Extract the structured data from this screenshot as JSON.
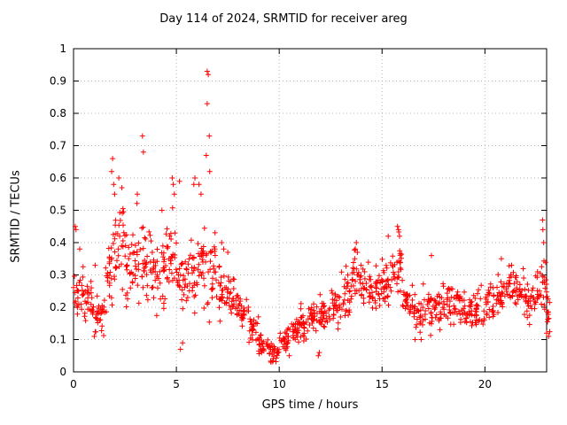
{
  "chart_data": {
    "type": "scatter",
    "title": "Day 114 of 2024, SRMTID for receiver areg",
    "xlabel": "GPS time / hours",
    "ylabel": "SRMTID / TECUs",
    "xlim": [
      0,
      23
    ],
    "ylim": [
      0,
      1
    ],
    "xticks": [
      0,
      5,
      10,
      15,
      20
    ],
    "xtick_labels": [
      "0",
      "5",
      "10",
      "15",
      "20"
    ],
    "yticks": [
      0,
      0.1,
      0.2,
      0.3,
      0.4,
      0.5,
      0.6,
      0.7,
      0.8,
      0.9,
      1
    ],
    "ytick_labels": [
      "0",
      "0.1",
      "0.2",
      "0.3",
      "0.4",
      "0.5",
      "0.6",
      "0.7",
      "0.8",
      "0.9",
      "1"
    ],
    "grid": true,
    "legend": "none",
    "marker": "+",
    "marker_color": "#ff0000",
    "grid_color": "#b4b4b4",
    "frame_color": "#000000",
    "bands_format": [
      "x_start",
      "x_end",
      "y_center",
      "y_spread",
      "n_points"
    ],
    "bands": [
      [
        0.0,
        0.5,
        0.24,
        0.08,
        26
      ],
      [
        0.5,
        1.0,
        0.2,
        0.06,
        26
      ],
      [
        1.0,
        1.5,
        0.16,
        0.07,
        26
      ],
      [
        1.5,
        2.0,
        0.3,
        0.14,
        28
      ],
      [
        2.0,
        2.5,
        0.4,
        0.13,
        28
      ],
      [
        2.5,
        3.0,
        0.3,
        0.12,
        26
      ],
      [
        3.0,
        3.5,
        0.36,
        0.12,
        28
      ],
      [
        3.5,
        4.0,
        0.32,
        0.1,
        26
      ],
      [
        4.0,
        4.5,
        0.3,
        0.1,
        26
      ],
      [
        4.5,
        5.0,
        0.34,
        0.12,
        28
      ],
      [
        5.0,
        5.5,
        0.27,
        0.09,
        26
      ],
      [
        5.5,
        6.0,
        0.3,
        0.12,
        26
      ],
      [
        6.0,
        6.5,
        0.34,
        0.14,
        26
      ],
      [
        6.5,
        7.0,
        0.3,
        0.12,
        26
      ],
      [
        7.0,
        7.5,
        0.25,
        0.08,
        26
      ],
      [
        7.5,
        8.0,
        0.22,
        0.06,
        26
      ],
      [
        8.0,
        8.5,
        0.19,
        0.05,
        26
      ],
      [
        8.5,
        9.0,
        0.13,
        0.05,
        26
      ],
      [
        9.0,
        9.5,
        0.08,
        0.035,
        26
      ],
      [
        9.5,
        10.0,
        0.06,
        0.03,
        26
      ],
      [
        10.0,
        10.5,
        0.09,
        0.04,
        26
      ],
      [
        10.5,
        11.0,
        0.13,
        0.05,
        26
      ],
      [
        11.0,
        11.5,
        0.15,
        0.05,
        26
      ],
      [
        11.5,
        12.0,
        0.17,
        0.05,
        26
      ],
      [
        12.0,
        12.5,
        0.18,
        0.05,
        26
      ],
      [
        12.5,
        13.0,
        0.2,
        0.05,
        26
      ],
      [
        13.0,
        13.5,
        0.23,
        0.07,
        26
      ],
      [
        13.5,
        14.0,
        0.3,
        0.07,
        28
      ],
      [
        14.0,
        14.5,
        0.27,
        0.07,
        26
      ],
      [
        14.5,
        15.0,
        0.25,
        0.07,
        26
      ],
      [
        15.0,
        15.5,
        0.28,
        0.08,
        28
      ],
      [
        15.5,
        16.0,
        0.32,
        0.08,
        28
      ],
      [
        16.0,
        16.5,
        0.22,
        0.07,
        26
      ],
      [
        16.5,
        17.0,
        0.18,
        0.06,
        26
      ],
      [
        17.0,
        17.5,
        0.2,
        0.07,
        26
      ],
      [
        17.5,
        18.0,
        0.2,
        0.06,
        26
      ],
      [
        18.0,
        18.5,
        0.2,
        0.06,
        26
      ],
      [
        18.5,
        19.0,
        0.2,
        0.06,
        26
      ],
      [
        19.0,
        19.5,
        0.19,
        0.05,
        26
      ],
      [
        19.5,
        20.0,
        0.2,
        0.06,
        26
      ],
      [
        20.0,
        20.5,
        0.22,
        0.06,
        26
      ],
      [
        20.5,
        21.0,
        0.24,
        0.07,
        26
      ],
      [
        21.0,
        21.5,
        0.26,
        0.07,
        26
      ],
      [
        21.5,
        22.0,
        0.25,
        0.07,
        26
      ],
      [
        22.0,
        22.5,
        0.22,
        0.07,
        26
      ],
      [
        22.5,
        23.0,
        0.25,
        0.09,
        28
      ],
      [
        23.0,
        23.2,
        0.18,
        0.06,
        10
      ]
    ],
    "outliers": [
      [
        0.08,
        0.45
      ],
      [
        0.12,
        0.44
      ],
      [
        0.3,
        0.38
      ],
      [
        1.05,
        0.33
      ],
      [
        1.85,
        0.62
      ],
      [
        1.9,
        0.66
      ],
      [
        1.95,
        0.58
      ],
      [
        2.0,
        0.55
      ],
      [
        2.2,
        0.6
      ],
      [
        2.35,
        0.57
      ],
      [
        3.1,
        0.55
      ],
      [
        3.35,
        0.73
      ],
      [
        3.4,
        0.68
      ],
      [
        4.3,
        0.5
      ],
      [
        4.8,
        0.6
      ],
      [
        4.85,
        0.58
      ],
      [
        4.9,
        0.55
      ],
      [
        5.15,
        0.59
      ],
      [
        5.2,
        0.07
      ],
      [
        5.3,
        0.09
      ],
      [
        5.85,
        0.58
      ],
      [
        5.9,
        0.6
      ],
      [
        6.1,
        0.58
      ],
      [
        6.2,
        0.55
      ],
      [
        6.45,
        0.67
      ],
      [
        6.5,
        0.93
      ],
      [
        6.5,
        0.83
      ],
      [
        6.55,
        0.92
      ],
      [
        6.6,
        0.73
      ],
      [
        6.62,
        0.62
      ],
      [
        7.2,
        0.4
      ],
      [
        7.3,
        0.38
      ],
      [
        7.5,
        0.37
      ],
      [
        9.6,
        0.03
      ],
      [
        9.7,
        0.035
      ],
      [
        11.9,
        0.05
      ],
      [
        11.95,
        0.06
      ],
      [
        13.7,
        0.38
      ],
      [
        13.75,
        0.4
      ],
      [
        13.8,
        0.37
      ],
      [
        15.3,
        0.42
      ],
      [
        15.75,
        0.45
      ],
      [
        15.8,
        0.44
      ],
      [
        15.85,
        0.42
      ],
      [
        16.6,
        0.1
      ],
      [
        16.9,
        0.1
      ],
      [
        17.4,
        0.36
      ],
      [
        20.8,
        0.35
      ],
      [
        21.3,
        0.33
      ],
      [
        22.8,
        0.47
      ],
      [
        22.82,
        0.44
      ],
      [
        22.86,
        0.4
      ],
      [
        23.0,
        0.12
      ],
      [
        23.1,
        0.11
      ]
    ]
  }
}
